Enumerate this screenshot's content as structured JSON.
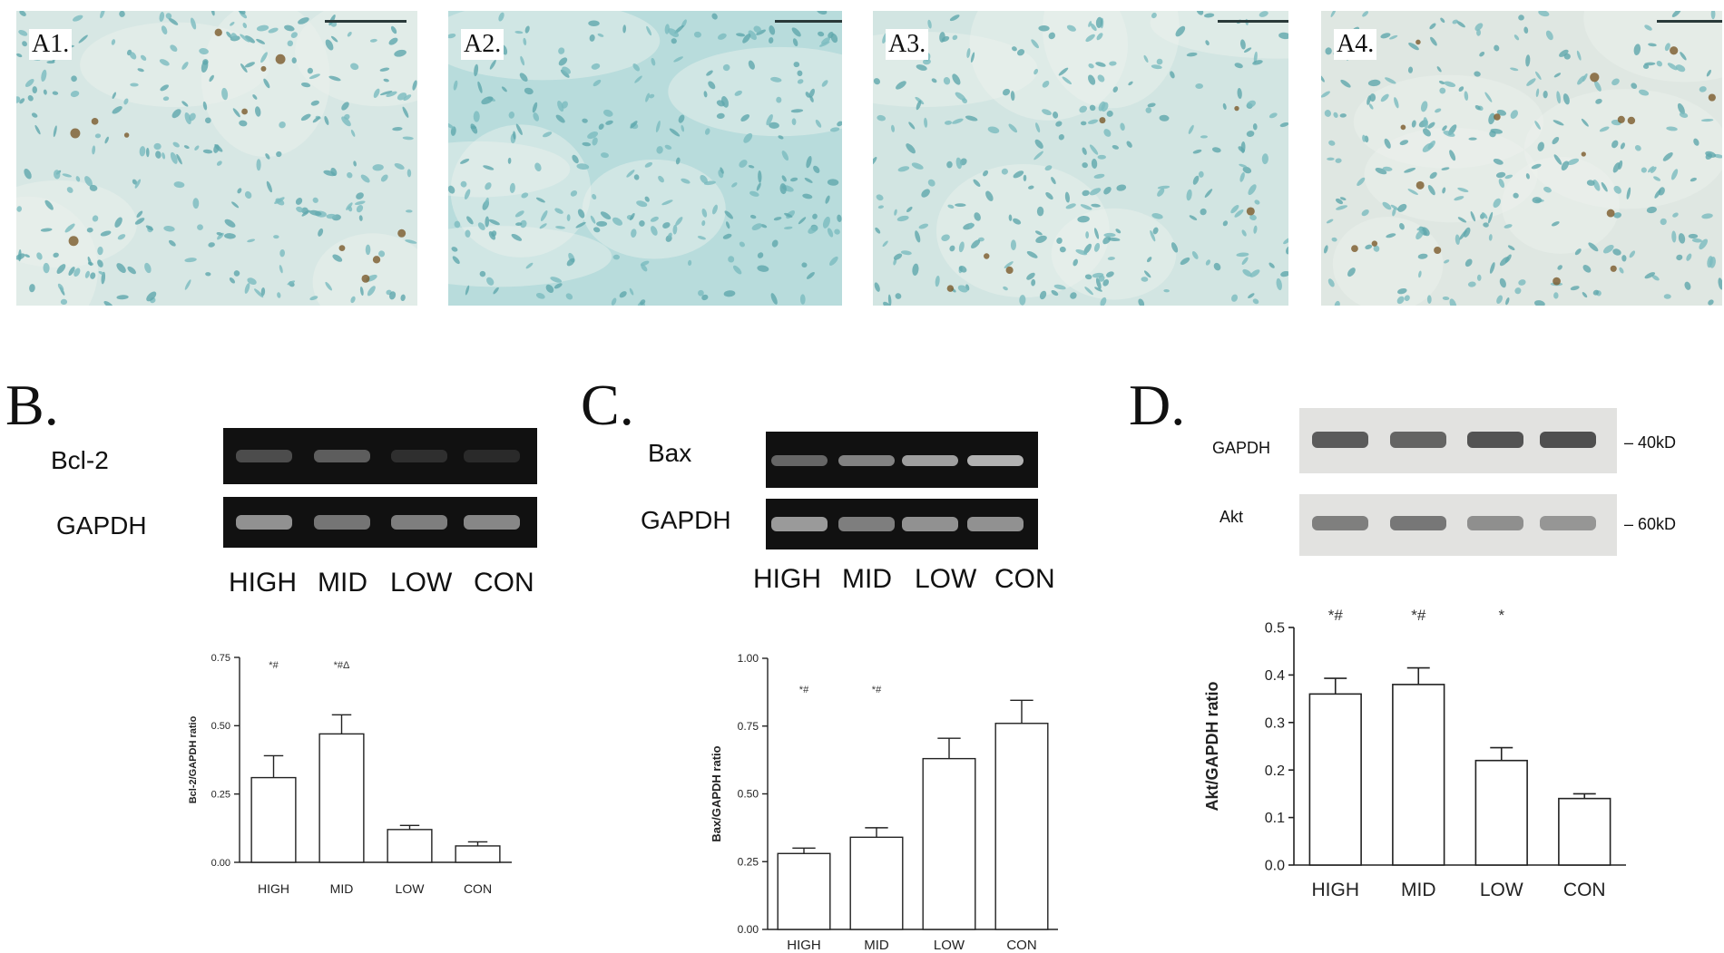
{
  "micrographs": [
    {
      "label": "A1.",
      "tone": "#d7e7e4"
    },
    {
      "label": "A2.",
      "tone": "#b8dcdc"
    },
    {
      "label": "A3.",
      "tone": "#d2e5e2"
    },
    {
      "label": "A4.",
      "tone": "#dfe7e2"
    }
  ],
  "panels": {
    "b": {
      "letter": "B.",
      "gel_rows": [
        "Bcl-2",
        "GAPDH"
      ],
      "lanes": [
        "HIGH",
        "MID",
        "LOW",
        "CON"
      ]
    },
    "c": {
      "letter": "C.",
      "gel_rows": [
        "Bax",
        "GAPDH"
      ],
      "lanes": [
        "HIGH",
        "MID",
        "LOW",
        "CON"
      ]
    },
    "d": {
      "letter": "D.",
      "blot_rows": [
        "GAPDH",
        "Akt"
      ],
      "kd": [
        "40kD",
        "60kD"
      ]
    }
  },
  "chart_data": [
    {
      "type": "bar",
      "panel": "B",
      "categories": [
        "HIGH",
        "MID",
        "LOW",
        "CON"
      ],
      "values": [
        0.31,
        0.47,
        0.12,
        0.06
      ],
      "errors": [
        0.08,
        0.07,
        0.015,
        0.015
      ],
      "annotations": [
        "*#",
        "*#Δ",
        "",
        ""
      ],
      "ylabel": "Bcl-2/GAPDH ratio",
      "ylim": [
        0,
        0.75
      ],
      "yticks": [
        "0.00",
        "0.25",
        "0.50",
        "0.75"
      ],
      "grid": false
    },
    {
      "type": "bar",
      "panel": "C",
      "categories": [
        "HIGH",
        "MID",
        "LOW",
        "CON"
      ],
      "values": [
        0.28,
        0.34,
        0.63,
        0.76
      ],
      "errors": [
        0.02,
        0.035,
        0.075,
        0.085
      ],
      "annotations": [
        "*#",
        "*#",
        "",
        ""
      ],
      "ylabel": "Bax/GAPDH ratio",
      "ylim": [
        0,
        1.0
      ],
      "yticks": [
        "0.00",
        "0.25",
        "0.50",
        "0.75",
        "1.00"
      ],
      "grid": false
    },
    {
      "type": "bar",
      "panel": "D",
      "categories": [
        "HIGH",
        "MID",
        "LOW",
        "CON"
      ],
      "values": [
        0.36,
        0.38,
        0.22,
        0.14
      ],
      "errors": [
        0.033,
        0.035,
        0.027,
        0.01
      ],
      "annotations": [
        "*#",
        "*#",
        "*",
        ""
      ],
      "ylabel": "Akt/GAPDH ratio",
      "ylim": [
        0,
        0.5
      ],
      "yticks": [
        "0.0",
        "0.1",
        "0.2",
        "0.3",
        "0.4",
        "0.5"
      ],
      "grid": false
    }
  ]
}
